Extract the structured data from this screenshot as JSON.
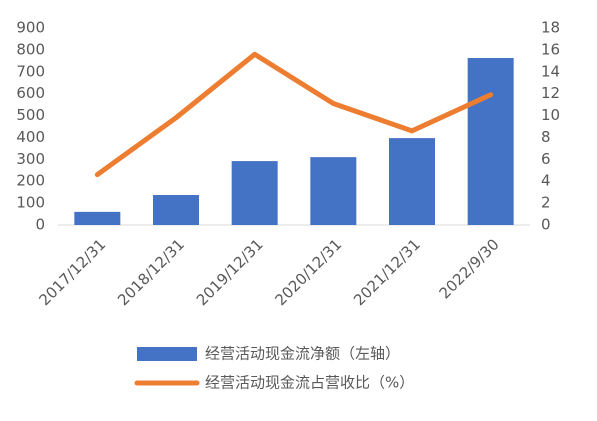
{
  "chart_data": {
    "type": "combo",
    "categories": [
      "2017/12/31",
      "2018/12/31",
      "2019/12/31",
      "2020/12/31",
      "2021/12/31",
      "2022/9/30"
    ],
    "series": [
      {
        "name": "经营活动现金流净额（左轴）",
        "type": "bar",
        "color": "#4472c4",
        "values": [
          60,
          137,
          292,
          310,
          397,
          763
        ]
      },
      {
        "name": "经营活动现金流占营收比（%）",
        "type": "line",
        "axis": "y2",
        "color": "#ed7d31",
        "values": [
          4.6,
          9.8,
          15.6,
          11.1,
          8.6,
          11.9
        ]
      }
    ],
    "ylim": [
      0,
      900
    ],
    "yticks": [
      0,
      100,
      200,
      300,
      400,
      500,
      600,
      700,
      800,
      900
    ],
    "y2lim": [
      0,
      18
    ],
    "y2ticks": [
      0,
      2,
      4,
      6,
      8,
      10,
      12,
      14,
      16,
      18
    ],
    "grid": false
  }
}
